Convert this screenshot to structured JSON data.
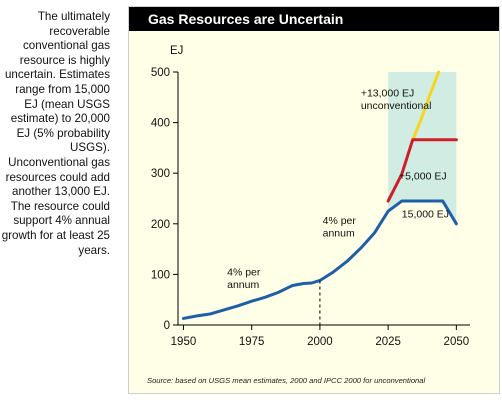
{
  "side_text": "The ultimately recoverable conventional gas resource is highly uncertain. Estimates range from 15,000 EJ (mean USGS estimate) to 20,000 EJ (5% probability USGS). Unconventional gas resources could add another 13,000 EJ. The resource could support 4% annual growth for at least 25 years.",
  "source": "Source: based on USGS mean estimates, 2000 and IPCC 2000 for unconventional",
  "colors": {
    "area_fill": "#d1ede3",
    "historic": "#1f5ea8",
    "red": "#cc1f2a",
    "yellow": "#f7d51d"
  },
  "chart_data": {
    "type": "line",
    "title": "Gas Resources are Uncertain",
    "ylabel": "EJ",
    "xlim": [
      1948,
      2055
    ],
    "ylim": [
      0,
      500
    ],
    "xticks": [
      1950,
      1975,
      2000,
      2025,
      2050
    ],
    "yticks": [
      0,
      100,
      200,
      300,
      400,
      500
    ],
    "series": [
      {
        "key": "base",
        "color": "#1f5ea8",
        "x": [
          1950,
          1955,
          1960,
          1965,
          1970,
          1975,
          1980,
          1985,
          1988,
          1990,
          1994,
          1997,
          2000,
          2005,
          2010,
          2015,
          2020,
          2025,
          2030,
          2035,
          2040,
          2045,
          2050
        ],
        "y": [
          13,
          18,
          22,
          30,
          38,
          47,
          55,
          65,
          73,
          78,
          82,
          83,
          88,
          105,
          126,
          152,
          182,
          225,
          245,
          245,
          245,
          245,
          200
        ]
      },
      {
        "key": "red",
        "color": "#cc1f2a",
        "x": [
          2025,
          2030,
          2034,
          2040,
          2045,
          2050
        ],
        "y": [
          245,
          298,
          366,
          366,
          366,
          366
        ]
      },
      {
        "key": "yellow",
        "color": "#f7d51d",
        "x": [
          2034,
          2037,
          2040,
          2043.5
        ],
        "y": [
          366,
          405,
          450,
          500
        ]
      }
    ],
    "annotations": [
      {
        "lines": [
          "4% per",
          "annum"
        ],
        "x": 1966,
        "y": 98
      },
      {
        "lines": [
          "4% per",
          "annum"
        ],
        "x": 2001,
        "y": 200
      },
      {
        "lines": [
          "+13,000 EJ",
          "unconventional"
        ],
        "x": 2015,
        "y": 452
      },
      {
        "lines": [
          "+5,000 EJ"
        ],
        "x": 2029,
        "y": 288
      },
      {
        "lines": [
          "15,000 EJ"
        ],
        "x": 2030,
        "y": 212
      }
    ],
    "reference_line": {
      "x": 2000,
      "style": "dashed"
    }
  }
}
